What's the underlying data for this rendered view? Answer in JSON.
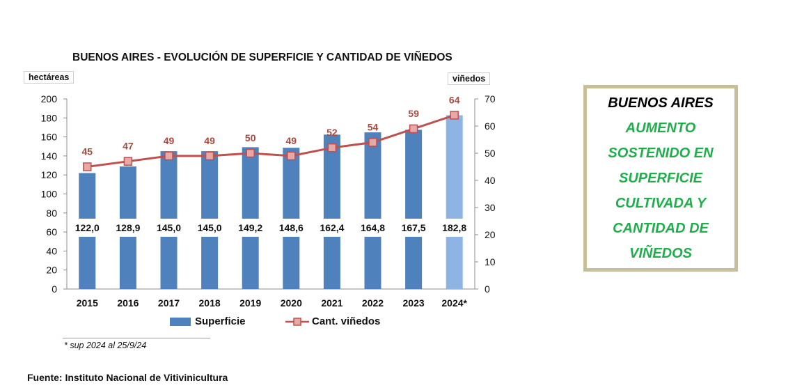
{
  "chart_data": {
    "type": "bar",
    "title": "BUENOS AIRES - EVOLUCIÓN DE SUPERFICIE Y CANTIDAD DE VIÑEDOS",
    "categories": [
      "2015",
      "2016",
      "2017",
      "2018",
      "2019",
      "2020",
      "2021",
      "2022",
      "2023",
      "2024*"
    ],
    "y_left": {
      "label": "hectáreas",
      "lim": [
        0,
        200
      ],
      "ticks": [
        0,
        20,
        40,
        60,
        80,
        100,
        120,
        140,
        160,
        180,
        200
      ]
    },
    "y_right": {
      "label": "viñedos",
      "lim": [
        0,
        70
      ],
      "ticks": [
        0,
        10,
        20,
        30,
        40,
        50,
        60,
        70
      ]
    },
    "series": [
      {
        "name": "Superficie",
        "type": "bar",
        "axis": "left",
        "values": [
          122.0,
          128.9,
          145.0,
          145.0,
          149.2,
          148.6,
          162.4,
          164.8,
          167.5,
          182.8
        ],
        "labels": [
          "122,0",
          "128,9",
          "145,0",
          "145,0",
          "149,2",
          "148,6",
          "162,4",
          "164,8",
          "167,5",
          "182,8"
        ],
        "color": "#4f81bd",
        "highlight_color": "#8db4e2"
      },
      {
        "name": "Cant. viñedos",
        "type": "line",
        "axis": "right",
        "values": [
          45,
          47,
          49,
          49,
          50,
          49,
          52,
          54,
          59,
          64
        ],
        "labels": [
          "45",
          "47",
          "49",
          "49",
          "50",
          "49",
          "52",
          "54",
          "59",
          "64"
        ],
        "color": "#c0504d",
        "marker_color": "#e6a9a8"
      }
    ],
    "grid": false,
    "legend": "bottom"
  },
  "footnote": "* sup 2024 al 25/9/24",
  "source": "Fuente: Instituto Nacional de Vitivinicultura",
  "callout": {
    "heading": "BUENOS AIRES",
    "lines": [
      "AUMENTO",
      "SOSTENIDO EN",
      "SUPERFICIE",
      "CULTIVADA Y",
      "CANTIDAD DE",
      "VIÑEDOS"
    ]
  }
}
